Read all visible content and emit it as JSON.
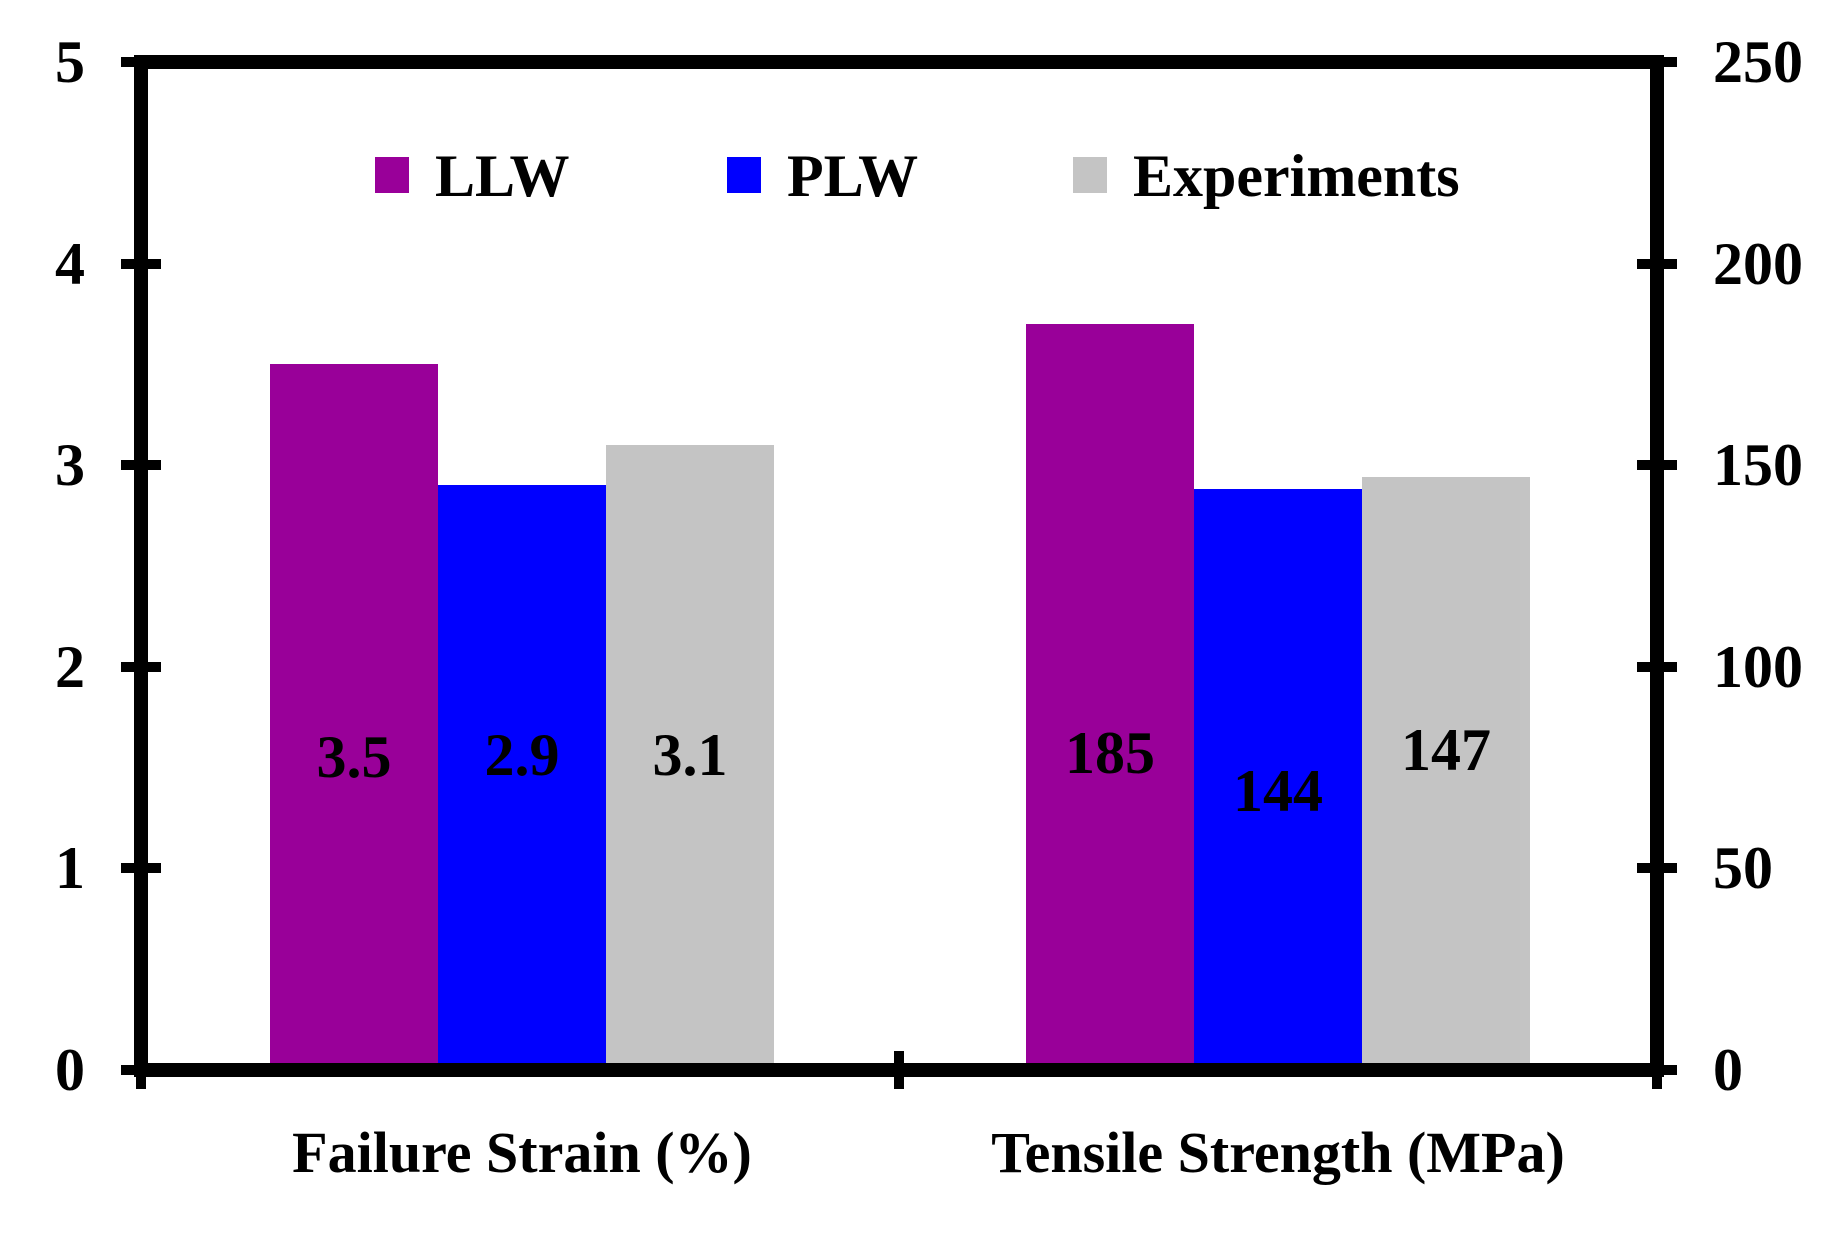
{
  "chart_data": {
    "type": "bar",
    "title": "",
    "legend_position": "top-center",
    "grid": false,
    "series": [
      {
        "name": "LLW",
        "color": "#990099"
      },
      {
        "name": "PLW",
        "color": "#0000FF"
      },
      {
        "name": "Experiments",
        "color": "#C4C4C4"
      }
    ],
    "groups": [
      {
        "label": "Failure Strain (%)",
        "axis": "left",
        "values": [
          3.5,
          2.9,
          3.1
        ],
        "value_labels": [
          "3.5",
          "2.9",
          "3.1"
        ]
      },
      {
        "label": "Tensile Strength (MPa)",
        "axis": "right",
        "values": [
          185,
          144,
          147
        ],
        "value_labels": [
          "185",
          "144",
          "147"
        ]
      }
    ],
    "left_axis": {
      "min": 0,
      "max": 5,
      "ticks": [
        0,
        1,
        2,
        3,
        4,
        5
      ]
    },
    "right_axis": {
      "min": 0,
      "max": 250,
      "ticks": [
        0,
        50,
        100,
        150,
        200,
        250
      ]
    },
    "colors": {
      "frame": "#000000",
      "background": "#ffffff",
      "text": "#000000"
    }
  }
}
